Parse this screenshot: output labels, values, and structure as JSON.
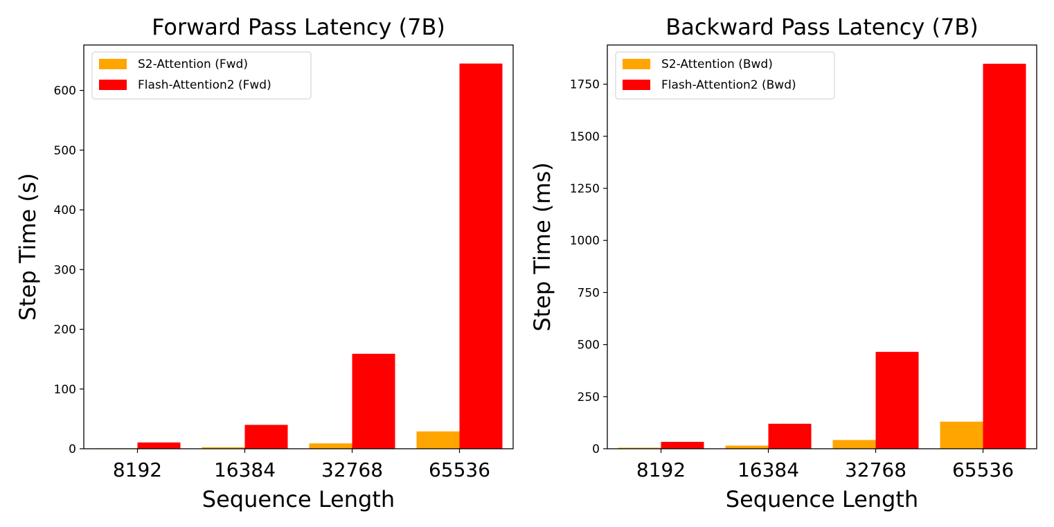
{
  "chart_data": [
    {
      "type": "bar",
      "title": "Forward Pass Latency (7B)",
      "xlabel": "Sequence Length",
      "ylabel": "Step Time (s)",
      "categories": [
        "8192",
        "16384",
        "32768",
        "65536"
      ],
      "ylim": [
        0,
        676
      ],
      "yticks": [
        0,
        100,
        200,
        300,
        400,
        500,
        600
      ],
      "legend_position": "top-left",
      "grid": false,
      "series": [
        {
          "name": "S2-Attention (Fwd)",
          "color": "#FFA500",
          "values": [
            0.8,
            2.5,
            9,
            29
          ]
        },
        {
          "name": "Flash-Attention2 (Fwd)",
          "color": "#FF0000",
          "values": [
            10.5,
            40,
            159,
            645
          ]
        }
      ]
    },
    {
      "type": "bar",
      "title": "Backward Pass Latency (7B)",
      "xlabel": "Sequence Length",
      "ylabel": "Step Time (ms)",
      "categories": [
        "8192",
        "16384",
        "32768",
        "65536"
      ],
      "ylim": [
        0,
        1938
      ],
      "yticks": [
        0,
        250,
        500,
        750,
        1000,
        1250,
        1500,
        1750
      ],
      "legend_position": "top-left",
      "grid": false,
      "series": [
        {
          "name": "S2-Attention (Bwd)",
          "color": "#FFA500",
          "values": [
            5,
            15,
            42,
            130
          ]
        },
        {
          "name": "Flash-Attention2 (Bwd)",
          "color": "#FF0000",
          "values": [
            33,
            120,
            465,
            1848
          ]
        }
      ]
    }
  ]
}
